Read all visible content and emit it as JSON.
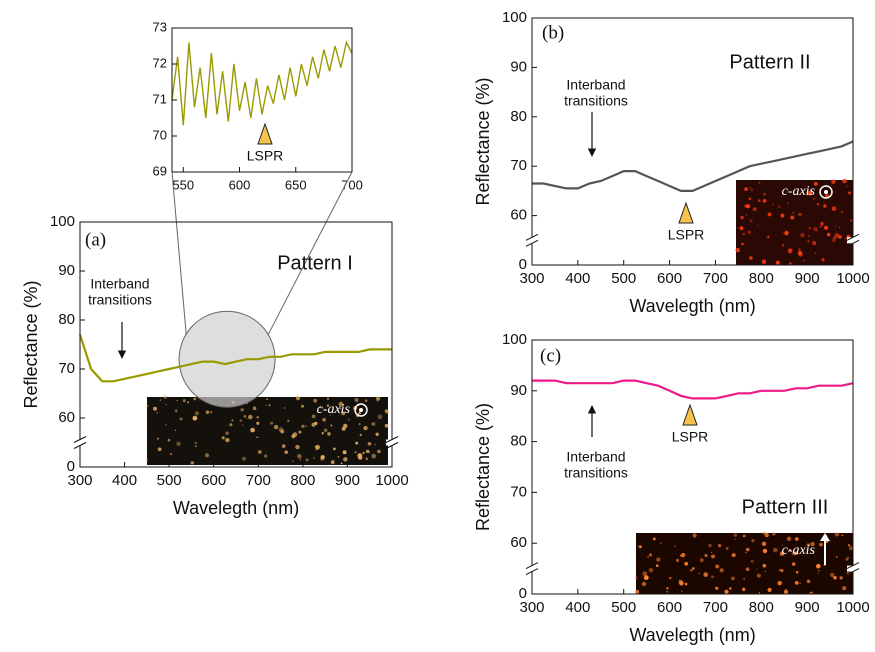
{
  "chart_data": [
    {
      "type": "line",
      "color": "#9a9a00",
      "x": [
        540,
        545,
        550,
        555,
        560,
        565,
        570,
        575,
        580,
        585,
        590,
        595,
        600,
        605,
        610,
        615,
        620,
        625,
        630,
        635,
        640,
        645,
        650,
        655,
        660,
        665,
        670,
        675,
        680,
        685,
        690,
        695,
        700
      ],
      "values": [
        71.0,
        72.2,
        70.3,
        72.6,
        70.8,
        71.9,
        70.5,
        72.3,
        70.6,
        71.8,
        70.4,
        72.0,
        70.7,
        71.5,
        70.5,
        71.6,
        70.6,
        71.4,
        70.9,
        71.7,
        71.0,
        71.9,
        71.1,
        72.0,
        71.4,
        72.2,
        71.6,
        72.4,
        71.8,
        72.5,
        71.9,
        72.6,
        72.3
      ],
      "xlim": [
        540,
        700
      ],
      "xticks": [
        550,
        600,
        650,
        700
      ],
      "ylim": [
        69,
        73
      ],
      "yticks": [
        69,
        70,
        71,
        72,
        73
      ],
      "lspr_label": "LSPR"
    },
    {
      "type": "line",
      "color": "#9a9a00",
      "panel_label": "(a)",
      "title": "Pattern I",
      "x_label": "Wavelegth (nm)",
      "y_label": "Reflectance (%)",
      "x": [
        300,
        325,
        350,
        375,
        400,
        425,
        450,
        475,
        500,
        525,
        550,
        575,
        600,
        625,
        650,
        675,
        700,
        725,
        750,
        775,
        800,
        825,
        850,
        875,
        900,
        925,
        950,
        975,
        1000
      ],
      "values": [
        77,
        70,
        67.5,
        67.5,
        68,
        68.5,
        69,
        69.5,
        70,
        70.5,
        71,
        71.5,
        71.5,
        71,
        71.5,
        72,
        72,
        72.5,
        72.5,
        73,
        73,
        73,
        73.5,
        73.5,
        73.5,
        73.5,
        74,
        74,
        74
      ],
      "xlim": [
        300,
        1000
      ],
      "xticks": [
        300,
        400,
        500,
        600,
        700,
        800,
        900,
        1000
      ],
      "ylim": [
        0,
        100
      ],
      "yticks": [
        0,
        60,
        70,
        80,
        90,
        100
      ],
      "axis_break": true,
      "interband_label": [
        "Interband",
        "transitions"
      ],
      "caxis_label": "c-axis"
    },
    {
      "type": "line",
      "color": "#555555",
      "panel_label": "(b)",
      "title": "Pattern II",
      "x_label": "Wavelegth (nm)",
      "y_label": "Reflectance (%)",
      "x": [
        300,
        325,
        350,
        375,
        400,
        425,
        450,
        475,
        500,
        525,
        550,
        575,
        600,
        625,
        650,
        675,
        700,
        725,
        750,
        775,
        800,
        825,
        850,
        875,
        900,
        925,
        950,
        975,
        1000
      ],
      "values": [
        66.5,
        66.5,
        66,
        65.5,
        65.5,
        66.5,
        67,
        68,
        69,
        69,
        68,
        67,
        66,
        65,
        65,
        66,
        67,
        68,
        69,
        70,
        70.5,
        71,
        71.5,
        72,
        72.5,
        73,
        73.5,
        74,
        75
      ],
      "xlim": [
        300,
        1000
      ],
      "xticks": [
        300,
        400,
        500,
        600,
        700,
        800,
        900,
        1000
      ],
      "ylim": [
        0,
        100
      ],
      "yticks": [
        0,
        60,
        70,
        80,
        90,
        100
      ],
      "axis_break": true,
      "interband_label": [
        "Interband",
        "transitions"
      ],
      "lspr_label": "LSPR",
      "caxis_label": "c-axis"
    },
    {
      "type": "line",
      "color": "#ee1a8a",
      "panel_label": "(c)",
      "title": "Pattern III",
      "x_label": "Wavelegth (nm)",
      "y_label": "Reflectance (%)",
      "x": [
        300,
        325,
        350,
        375,
        400,
        425,
        450,
        475,
        500,
        525,
        550,
        575,
        600,
        625,
        650,
        675,
        700,
        725,
        750,
        775,
        800,
        825,
        850,
        875,
        900,
        925,
        950,
        975,
        1000
      ],
      "values": [
        92,
        92,
        92,
        91.5,
        91.5,
        91.5,
        91.5,
        91.5,
        92,
        92,
        91.5,
        91,
        90,
        89,
        88.5,
        88.5,
        88.5,
        89,
        89.5,
        89.5,
        90,
        90,
        90,
        90.5,
        90.5,
        91,
        91,
        91,
        91.5
      ],
      "xlim": [
        300,
        1000
      ],
      "xticks": [
        300,
        400,
        500,
        600,
        700,
        800,
        900,
        1000
      ],
      "ylim": [
        0,
        100
      ],
      "yticks": [
        0,
        60,
        70,
        80,
        90,
        100
      ],
      "axis_break": true,
      "interband_label": [
        "Interband",
        "transitions"
      ],
      "lspr_label": "LSPR",
      "caxis_label": "c-axis"
    }
  ]
}
